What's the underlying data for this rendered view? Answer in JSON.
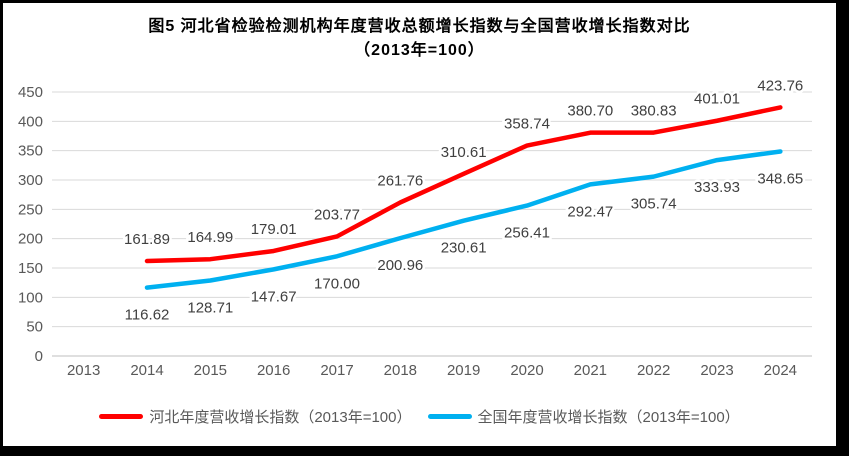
{
  "figure": {
    "frame_color": "#000000",
    "background_color": "#ffffff"
  },
  "chart_data": {
    "type": "line",
    "title": "图5  河北省检验检测机构年度营收总额增长指数与全国营收增长指数对比",
    "subtitle": "（2013年=100）",
    "categories": [
      "2013",
      "2014",
      "2015",
      "2016",
      "2017",
      "2018",
      "2019",
      "2020",
      "2021",
      "2022",
      "2023",
      "2024"
    ],
    "series": [
      {
        "name": "河北年度营收增长指数（2013年=100）",
        "color": "#FF0000",
        "label_position": "above",
        "values": [
          null,
          161.89,
          164.99,
          179.01,
          203.77,
          261.76,
          310.61,
          358.74,
          380.7,
          380.83,
          401.01,
          423.76
        ]
      },
      {
        "name": "全国年度营收增长指数（2013年=100）",
        "color": "#00B0F0",
        "label_position": "below",
        "values": [
          null,
          116.62,
          128.71,
          147.67,
          170.0,
          200.96,
          230.61,
          256.41,
          292.47,
          305.74,
          333.93,
          348.65
        ]
      }
    ],
    "ylim": [
      0,
      450
    ],
    "y_tick_interval": 50,
    "y_ticks": [
      0,
      50,
      100,
      150,
      200,
      250,
      300,
      350,
      400,
      450
    ],
    "grid": true,
    "data_labels": true,
    "data_label_decimals": 2,
    "legend_position": "bottom",
    "colors": {
      "data_label_text": "#404040",
      "axis_text": "#595959",
      "gridline": "#D9D9D9",
      "axis_line": "#BFBFBF",
      "legend_text": "#595959",
      "title_text": "#000000"
    }
  }
}
